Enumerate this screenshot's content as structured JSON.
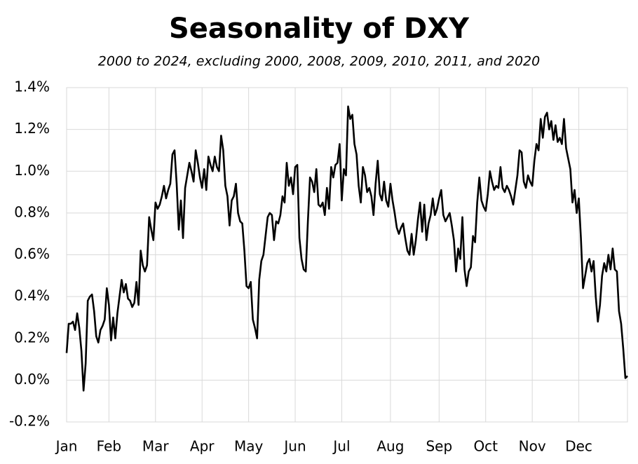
{
  "chart_data": {
    "type": "line",
    "title": "Seasonality of DXY",
    "subtitle": "2000 to 2024, excluding  2000, 2008, 2009, 2010, 2011, and 2020",
    "color": "#000000",
    "grid": true,
    "xlim": [
      0,
      265
    ],
    "xticks": [
      {
        "value": 0,
        "label": "Jan"
      },
      {
        "value": 20,
        "label": "Feb"
      },
      {
        "value": 42,
        "label": "Mar"
      },
      {
        "value": 64,
        "label": "Apr"
      },
      {
        "value": 86,
        "label": "May"
      },
      {
        "value": 108,
        "label": "Jun"
      },
      {
        "value": 130,
        "label": "Jul"
      },
      {
        "value": 153,
        "label": "Aug"
      },
      {
        "value": 176,
        "label": "Sep"
      },
      {
        "value": 198,
        "label": "Oct"
      },
      {
        "value": 220,
        "label": "Nov"
      },
      {
        "value": 242,
        "label": "Dec"
      }
    ],
    "ylim": [
      -0.2,
      1.4
    ],
    "yticks": [
      {
        "value": -0.2,
        "label": "-0.2%"
      },
      {
        "value": 0,
        "label": "0.0%"
      },
      {
        "value": 0.2,
        "label": "0.2%"
      },
      {
        "value": 0.4,
        "label": "0.4%"
      },
      {
        "value": 0.6,
        "label": "0.6%"
      },
      {
        "value": 0.8,
        "label": "0.8%"
      },
      {
        "value": 1.0,
        "label": "1.0%"
      },
      {
        "value": 1.2,
        "label": "1.2%"
      },
      {
        "value": 1.4,
        "label": "1.4%"
      }
    ],
    "values": [
      0.13,
      0.27,
      0.27,
      0.28,
      0.24,
      0.32,
      0.25,
      0.14,
      -0.05,
      0.08,
      0.38,
      0.4,
      0.41,
      0.33,
      0.21,
      0.18,
      0.24,
      0.26,
      0.29,
      0.44,
      0.36,
      0.19,
      0.3,
      0.2,
      0.32,
      0.4,
      0.48,
      0.42,
      0.46,
      0.39,
      0.38,
      0.35,
      0.37,
      0.47,
      0.36,
      0.62,
      0.55,
      0.52,
      0.55,
      0.78,
      0.72,
      0.67,
      0.85,
      0.82,
      0.84,
      0.88,
      0.93,
      0.87,
      0.91,
      0.94,
      1.08,
      1.1,
      0.94,
      0.72,
      0.86,
      0.68,
      0.92,
      0.98,
      1.04,
      1.0,
      0.95,
      1.1,
      1.04,
      0.97,
      0.92,
      1.01,
      0.91,
      1.07,
      1.03,
      1.0,
      1.07,
      1.02,
      1.0,
      1.17,
      1.1,
      0.93,
      0.88,
      0.74,
      0.86,
      0.88,
      0.94,
      0.8,
      0.76,
      0.75,
      0.62,
      0.45,
      0.44,
      0.47,
      0.29,
      0.25,
      0.2,
      0.48,
      0.57,
      0.6,
      0.69,
      0.78,
      0.8,
      0.79,
      0.67,
      0.76,
      0.75,
      0.79,
      0.88,
      0.85,
      1.04,
      0.93,
      0.97,
      0.89,
      1.02,
      1.03,
      0.68,
      0.58,
      0.53,
      0.52,
      0.76,
      0.97,
      0.95,
      0.9,
      1.01,
      0.84,
      0.83,
      0.85,
      0.79,
      0.92,
      0.82,
      1.02,
      0.97,
      1.03,
      1.04,
      1.13,
      0.86,
      1.01,
      0.98,
      1.31,
      1.25,
      1.27,
      1.13,
      1.08,
      0.93,
      0.85,
      1.02,
      0.98,
      0.9,
      0.92,
      0.88,
      0.79,
      0.94,
      1.05,
      0.89,
      0.86,
      0.95,
      0.86,
      0.83,
      0.94,
      0.86,
      0.8,
      0.73,
      0.7,
      0.73,
      0.75,
      0.68,
      0.62,
      0.6,
      0.7,
      0.6,
      0.67,
      0.77,
      0.85,
      0.71,
      0.84,
      0.67,
      0.75,
      0.79,
      0.87,
      0.79,
      0.82,
      0.87,
      0.91,
      0.79,
      0.76,
      0.78,
      0.8,
      0.74,
      0.67,
      0.52,
      0.63,
      0.58,
      0.78,
      0.53,
      0.45,
      0.52,
      0.54,
      0.69,
      0.66,
      0.85,
      0.97,
      0.86,
      0.83,
      0.81,
      0.89,
      1.0,
      0.95,
      0.91,
      0.93,
      0.92,
      1.02,
      0.92,
      0.9,
      0.93,
      0.91,
      0.88,
      0.84,
      0.91,
      0.98,
      1.1,
      1.09,
      0.95,
      0.92,
      0.98,
      0.95,
      0.93,
      1.05,
      1.13,
      1.1,
      1.25,
      1.16,
      1.26,
      1.28,
      1.2,
      1.24,
      1.15,
      1.22,
      1.14,
      1.16,
      1.13,
      1.25,
      1.11,
      1.06,
      1.01,
      0.85,
      0.91,
      0.8,
      0.87,
      0.68,
      0.44,
      0.5,
      0.56,
      0.58,
      0.52,
      0.57,
      0.4,
      0.28,
      0.36,
      0.5,
      0.56,
      0.52,
      0.6,
      0.53,
      0.63,
      0.53,
      0.52,
      0.33,
      0.27,
      0.15,
      0.01,
      0.02
    ]
  }
}
